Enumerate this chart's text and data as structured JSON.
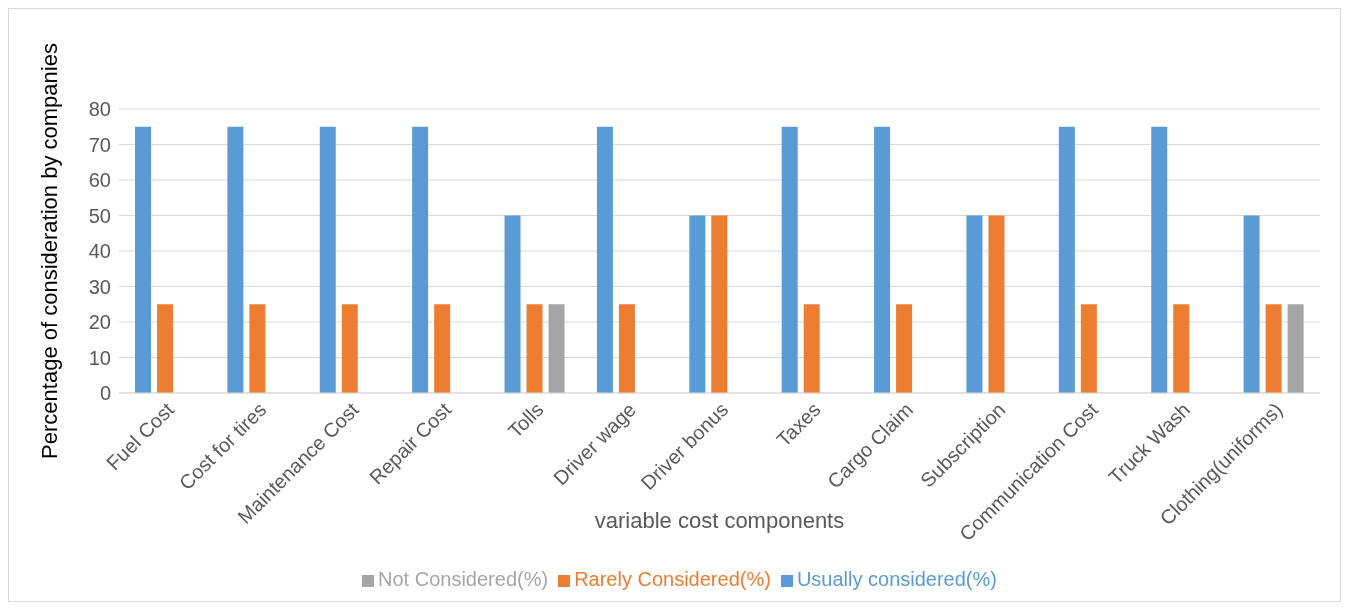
{
  "chart_data": {
    "type": "bar",
    "xlabel": "variable cost components",
    "ylabel": "Percentage of consideration by companies",
    "categories": [
      "Fuel Cost",
      "Cost for tires",
      "Maintenance Cost",
      "Repair Cost",
      "Tolls",
      "Driver wage",
      "Driver bonus",
      "Taxes",
      "Cargo Claim",
      "Subscription",
      "Communication Cost",
      "Truck Wash",
      "Clothing(uniforms)"
    ],
    "series": [
      {
        "name": "Usually considered(%)",
        "color": "#5b9bd5",
        "values": [
          75,
          75,
          75,
          75,
          50,
          75,
          50,
          75,
          75,
          50,
          75,
          75,
          50
        ]
      },
      {
        "name": "Rarely Considered(%)",
        "color": "#ed7d31",
        "values": [
          25,
          25,
          25,
          25,
          25,
          25,
          50,
          25,
          25,
          50,
          25,
          25,
          25
        ]
      },
      {
        "name": "Not Considered(%)",
        "color": "#a5a5a5",
        "values": [
          0,
          0,
          0,
          0,
          25,
          0,
          0,
          0,
          0,
          0,
          0,
          0,
          25
        ]
      }
    ],
    "ylim": [
      0,
      80
    ],
    "yticks": [
      0,
      10,
      20,
      30,
      40,
      50,
      60,
      70,
      80
    ],
    "grid": "y",
    "legend": "bottom"
  }
}
